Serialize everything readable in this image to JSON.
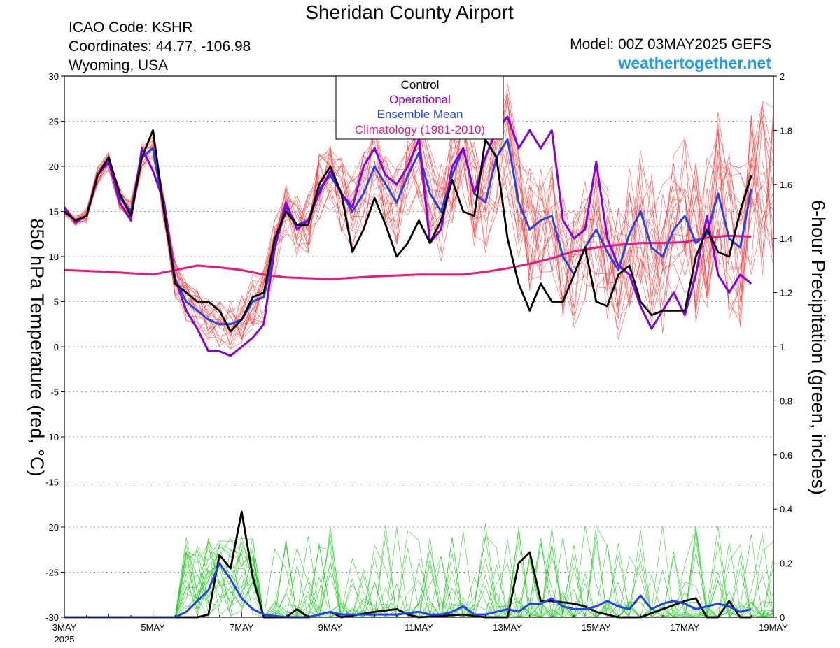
{
  "header": {
    "title": "Sheridan County Airport",
    "icao": "ICAO Code: KSHR",
    "coordinates": "Coordinates: 44.77, -106.98",
    "location": "Wyoming, USA",
    "model": "Model: 00Z 03MAY2025 GEFS",
    "site": "weathertogether.net"
  },
  "colors": {
    "ensemble_member_temp": "#ff3d3d",
    "ensemble_member_precip": "#22cc22",
    "control": "#000000",
    "operational": "#8800dd",
    "ensemble_mean": "#2244ee",
    "climatology": "#e8187f",
    "site_link": "#1e9df0"
  },
  "chart_data": {
    "type": "line",
    "title": "Sheridan County Airport",
    "ylabel_left": "850 hPa Temperature (red, °C)",
    "ylabel_right": "6-hour Precipitation (green, inches)",
    "ylim_left": [
      -30,
      30
    ],
    "ylim_right": [
      0,
      2
    ],
    "yticks_left": [
      -30,
      -25,
      -20,
      -15,
      -10,
      -5,
      0,
      5,
      10,
      15,
      20,
      25,
      30
    ],
    "yticks_right": [
      0,
      0.2,
      0.4,
      0.6,
      0.8,
      1,
      1.2,
      1.4,
      1.6,
      1.8,
      2
    ],
    "yticks_right_labels": [
      "0",
      "0.2",
      "0.4",
      "0.6",
      "0.8",
      "1",
      "1.2",
      "1.4",
      "1.6",
      "1.8",
      "2"
    ],
    "xlim_days": [
      0,
      16
    ],
    "xticks": [
      {
        "day": 0,
        "label": "3MAY",
        "sub": "2025"
      },
      {
        "day": 2,
        "label": "5MAY",
        "sub": ""
      },
      {
        "day": 4,
        "label": "7MAY",
        "sub": ""
      },
      {
        "day": 6,
        "label": "9MAY",
        "sub": ""
      },
      {
        "day": 8,
        "label": "11MAY",
        "sub": ""
      },
      {
        "day": 10,
        "label": "13MAY",
        "sub": ""
      },
      {
        "day": 12,
        "label": "15MAY",
        "sub": ""
      },
      {
        "day": 14,
        "label": "17MAY",
        "sub": ""
      },
      {
        "day": 16,
        "label": "19MAY",
        "sub": ""
      }
    ],
    "grid": "dotted horizontal",
    "legend_position": "top-center",
    "legend": [
      {
        "label": "Control",
        "color": "#000000"
      },
      {
        "label": "Operational",
        "color": "#8800dd"
      },
      {
        "label": "Ensemble Mean",
        "color": "#2244ee"
      },
      {
        "label": "Climatology (1981-2010)",
        "color": "#e8187f"
      }
    ],
    "series": {
      "control_temp": [
        [
          0,
          15
        ],
        [
          0.25,
          14
        ],
        [
          0.5,
          14.5
        ],
        [
          0.75,
          19
        ],
        [
          1,
          21
        ],
        [
          1.25,
          17
        ],
        [
          1.5,
          14.5
        ],
        [
          1.75,
          21
        ],
        [
          2,
          24
        ],
        [
          2.25,
          15
        ],
        [
          2.5,
          7
        ],
        [
          2.75,
          6
        ],
        [
          3,
          5
        ],
        [
          3.25,
          5
        ],
        [
          3.5,
          4
        ],
        [
          3.75,
          1.7
        ],
        [
          4,
          3
        ],
        [
          4.25,
          5.5
        ],
        [
          4.5,
          6
        ],
        [
          4.75,
          12
        ],
        [
          5,
          15
        ],
        [
          5.25,
          13.5
        ],
        [
          5.5,
          13.5
        ],
        [
          5.75,
          18
        ],
        [
          6,
          20
        ],
        [
          6.25,
          17
        ],
        [
          6.5,
          10.5
        ],
        [
          6.75,
          13
        ],
        [
          7,
          16.5
        ],
        [
          7.25,
          13.5
        ],
        [
          7.5,
          10
        ],
        [
          7.75,
          11.5
        ],
        [
          8,
          14
        ],
        [
          8.25,
          11.5
        ],
        [
          8.5,
          14
        ],
        [
          8.75,
          18.5
        ],
        [
          9,
          15
        ],
        [
          9.25,
          14.5
        ],
        [
          9.5,
          23
        ],
        [
          9.75,
          21
        ],
        [
          10,
          12
        ],
        [
          10.25,
          7
        ],
        [
          10.5,
          4
        ],
        [
          10.75,
          7
        ],
        [
          11,
          5
        ],
        [
          11.25,
          5
        ],
        [
          11.5,
          8
        ],
        [
          11.75,
          11
        ],
        [
          12,
          5
        ],
        [
          12.25,
          4.5
        ],
        [
          12.5,
          8
        ],
        [
          12.75,
          9
        ],
        [
          13,
          5
        ],
        [
          13.25,
          3.5
        ],
        [
          13.5,
          4
        ],
        [
          13.75,
          4
        ],
        [
          14,
          4
        ],
        [
          14.25,
          10
        ],
        [
          14.5,
          13
        ],
        [
          14.75,
          10.5
        ],
        [
          15,
          10
        ],
        [
          15.25,
          15
        ],
        [
          15.5,
          19
        ]
      ],
      "operational_temp": [
        [
          0,
          15.5
        ],
        [
          0.25,
          13.8
        ],
        [
          0.5,
          14.5
        ],
        [
          0.75,
          19
        ],
        [
          1,
          20.5
        ],
        [
          1.25,
          16
        ],
        [
          1.5,
          14
        ],
        [
          1.75,
          22
        ],
        [
          2,
          19.5
        ],
        [
          2.25,
          16
        ],
        [
          2.5,
          7.5
        ],
        [
          2.75,
          4
        ],
        [
          3,
          2
        ],
        [
          3.25,
          -0.5
        ],
        [
          3.5,
          -0.5
        ],
        [
          3.75,
          -1
        ],
        [
          4,
          0
        ],
        [
          4.25,
          1
        ],
        [
          4.5,
          2.5
        ],
        [
          4.75,
          11
        ],
        [
          5,
          16
        ],
        [
          5.25,
          13
        ],
        [
          5.5,
          14
        ],
        [
          5.75,
          17
        ],
        [
          6,
          19.5
        ],
        [
          6.25,
          17
        ],
        [
          6.5,
          15.5
        ],
        [
          6.75,
          20
        ],
        [
          7,
          22
        ],
        [
          7.25,
          19
        ],
        [
          7.5,
          18
        ],
        [
          7.75,
          20
        ],
        [
          8,
          23
        ],
        [
          8.25,
          11.5
        ],
        [
          8.5,
          13
        ],
        [
          8.75,
          20
        ],
        [
          9,
          22
        ],
        [
          9.25,
          17
        ],
        [
          9.5,
          21
        ],
        [
          9.75,
          24
        ],
        [
          10,
          25.5
        ],
        [
          10.25,
          22
        ],
        [
          10.5,
          24
        ],
        [
          10.75,
          22
        ],
        [
          11,
          24
        ],
        [
          11.25,
          14
        ],
        [
          11.5,
          12
        ],
        [
          11.75,
          13
        ],
        [
          12,
          20.5
        ],
        [
          12.25,
          12
        ],
        [
          12.5,
          9
        ],
        [
          12.75,
          8
        ],
        [
          13,
          4.5
        ],
        [
          13.25,
          2
        ],
        [
          13.5,
          4
        ],
        [
          13.75,
          6
        ],
        [
          14,
          3.5
        ],
        [
          14.25,
          8
        ],
        [
          14.5,
          14.5
        ],
        [
          14.75,
          8
        ],
        [
          15,
          6
        ],
        [
          15.25,
          8
        ],
        [
          15.5,
          7
        ]
      ],
      "mean_temp": [
        [
          0,
          15
        ],
        [
          0.25,
          14
        ],
        [
          0.5,
          14.5
        ],
        [
          0.75,
          19
        ],
        [
          1,
          20.5
        ],
        [
          1.25,
          16.5
        ],
        [
          1.5,
          15
        ],
        [
          1.75,
          21
        ],
        [
          2,
          22
        ],
        [
          2.25,
          15
        ],
        [
          2.5,
          7.5
        ],
        [
          2.75,
          5
        ],
        [
          3,
          4
        ],
        [
          3.25,
          3
        ],
        [
          3.5,
          2.5
        ],
        [
          3.75,
          2.5
        ],
        [
          4,
          3
        ],
        [
          4.25,
          5
        ],
        [
          4.5,
          5.5
        ],
        [
          4.75,
          11
        ],
        [
          5,
          15.5
        ],
        [
          5.25,
          13.5
        ],
        [
          5.5,
          14
        ],
        [
          5.75,
          17.5
        ],
        [
          6,
          19
        ],
        [
          6.25,
          17
        ],
        [
          6.5,
          15
        ],
        [
          6.75,
          17
        ],
        [
          7,
          20
        ],
        [
          7.25,
          18
        ],
        [
          7.5,
          16
        ],
        [
          7.75,
          19
        ],
        [
          8,
          21.5
        ],
        [
          8.25,
          17
        ],
        [
          8.5,
          15
        ],
        [
          8.75,
          19
        ],
        [
          9,
          22
        ],
        [
          9.25,
          17
        ],
        [
          9.5,
          16
        ],
        [
          9.75,
          21
        ],
        [
          10,
          23
        ],
        [
          10.25,
          16
        ],
        [
          10.5,
          13
        ],
        [
          10.75,
          14
        ],
        [
          11,
          14.5
        ],
        [
          11.25,
          10
        ],
        [
          11.5,
          8
        ],
        [
          11.75,
          11
        ],
        [
          12,
          13
        ],
        [
          12.25,
          10.5
        ],
        [
          12.5,
          8.5
        ],
        [
          12.75,
          12.5
        ],
        [
          13,
          15
        ],
        [
          13.25,
          11
        ],
        [
          13.5,
          10
        ],
        [
          13.75,
          13
        ],
        [
          14,
          14.5
        ],
        [
          14.25,
          11.5
        ],
        [
          14.5,
          12.5
        ],
        [
          14.75,
          17
        ],
        [
          15,
          12
        ],
        [
          15.25,
          11
        ],
        [
          15.5,
          17.5
        ]
      ],
      "climatology_temp": [
        [
          0,
          8.5
        ],
        [
          1,
          8.3
        ],
        [
          2,
          8
        ],
        [
          2.5,
          8.5
        ],
        [
          3,
          9
        ],
        [
          3.5,
          8.8
        ],
        [
          4,
          8.5
        ],
        [
          4.5,
          8
        ],
        [
          5,
          7.7
        ],
        [
          6,
          7.5
        ],
        [
          7,
          7.8
        ],
        [
          8,
          8
        ],
        [
          9,
          8
        ],
        [
          9.5,
          8.3
        ],
        [
          10,
          8.7
        ],
        [
          10.5,
          9.2
        ],
        [
          11,
          9.8
        ],
        [
          11.5,
          10.6
        ],
        [
          12,
          11
        ],
        [
          12.5,
          11.3
        ],
        [
          13,
          11.5
        ],
        [
          13.5,
          11.5
        ],
        [
          14,
          11.6
        ],
        [
          14.5,
          12.1
        ],
        [
          15,
          12.3
        ],
        [
          15.5,
          12.2
        ]
      ],
      "control_precip": [
        [
          0,
          0
        ],
        [
          3,
          0
        ],
        [
          3.25,
          0.01
        ],
        [
          3.5,
          0.23
        ],
        [
          3.75,
          0.18
        ],
        [
          4,
          0.39
        ],
        [
          4.25,
          0.15
        ],
        [
          4.5,
          0
        ],
        [
          4.75,
          0
        ],
        [
          5,
          0
        ],
        [
          5.25,
          0.03
        ],
        [
          5.5,
          0
        ],
        [
          6,
          0.02
        ],
        [
          6.25,
          0
        ],
        [
          7,
          0.02
        ],
        [
          7.5,
          0.03
        ],
        [
          7.75,
          0.01
        ],
        [
          8,
          0
        ],
        [
          9,
          0.01
        ],
        [
          9.5,
          0
        ],
        [
          10,
          0
        ],
        [
          10.25,
          0.2
        ],
        [
          10.5,
          0.24
        ],
        [
          10.75,
          0.06
        ],
        [
          11,
          0.06
        ],
        [
          11.5,
          0.05
        ],
        [
          11.75,
          0.04
        ],
        [
          12,
          0.02
        ],
        [
          12.5,
          0
        ],
        [
          13,
          0
        ],
        [
          14,
          0.06
        ],
        [
          14.25,
          0.07
        ],
        [
          14.5,
          0
        ],
        [
          14.75,
          0
        ],
        [
          15,
          0.06
        ],
        [
          15.25,
          0
        ],
        [
          15.5,
          0
        ]
      ],
      "mean_precip": [
        [
          0,
          0
        ],
        [
          2.5,
          0
        ],
        [
          2.75,
          0.02
        ],
        [
          3,
          0.06
        ],
        [
          3.25,
          0.1
        ],
        [
          3.5,
          0.2
        ],
        [
          3.75,
          0.14
        ],
        [
          4,
          0.07
        ],
        [
          4.25,
          0.03
        ],
        [
          4.5,
          0.01
        ],
        [
          5,
          0
        ],
        [
          5.5,
          0
        ],
        [
          6,
          0.02
        ],
        [
          6.25,
          0.01
        ],
        [
          6.5,
          0.01
        ],
        [
          7,
          0.01
        ],
        [
          7.5,
          0.01
        ],
        [
          8,
          0.02
        ],
        [
          8.25,
          0.01
        ],
        [
          8.5,
          0.01
        ],
        [
          8.75,
          0.02
        ],
        [
          9,
          0.04
        ],
        [
          9.25,
          0.01
        ],
        [
          9.5,
          0.01
        ],
        [
          10,
          0.03
        ],
        [
          10.25,
          0.02
        ],
        [
          10.5,
          0.05
        ],
        [
          10.75,
          0.05
        ],
        [
          11,
          0.07
        ],
        [
          11.25,
          0.04
        ],
        [
          11.5,
          0.03
        ],
        [
          11.75,
          0.03
        ],
        [
          12,
          0.04
        ],
        [
          12.25,
          0.06
        ],
        [
          12.5,
          0.04
        ],
        [
          12.75,
          0.03
        ],
        [
          13,
          0.08
        ],
        [
          13.25,
          0.03
        ],
        [
          13.5,
          0.05
        ],
        [
          13.75,
          0.06
        ],
        [
          14,
          0.05
        ],
        [
          14.25,
          0.03
        ],
        [
          14.5,
          0.04
        ],
        [
          14.75,
          0.05
        ],
        [
          15,
          0.04
        ],
        [
          15.25,
          0.02
        ],
        [
          15.5,
          0.03
        ]
      ]
    }
  }
}
